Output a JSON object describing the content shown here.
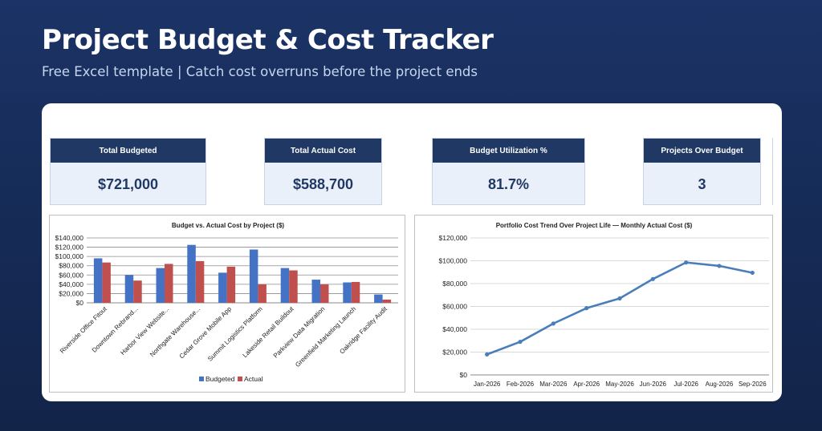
{
  "header": {
    "title": "Project Budget & Cost Tracker",
    "subtitle": "Free Excel template  |  Catch cost overruns before the project ends"
  },
  "kpis": [
    {
      "label": "Total Budgeted",
      "value": "$721,000"
    },
    {
      "label": "Total Actual Cost",
      "value": "$588,700"
    },
    {
      "label": "Budget Utilization %",
      "value": "81.7%"
    },
    {
      "label": "Projects Over Budget",
      "value": "3"
    }
  ],
  "colors": {
    "header_bg": "#1f3864",
    "kpi_bg": "#eaf0f9",
    "budgeted": "#4472c4",
    "actual": "#c0504d",
    "trend_line": "#4a7ebb"
  },
  "chart_data": [
    {
      "type": "bar",
      "title": "Budget vs. Actual Cost by Project ($)",
      "categories": [
        "Riverside Office Fitout",
        "Downtown Rebrand...",
        "Harbor View Website...",
        "Northgate Warehouse...",
        "Cedar Grove Mobile App",
        "Summit Logistics Platform",
        "Lakeside Retail Buildout",
        "Parkview Data Migration",
        "Greenfield Marketing Launch",
        "Oakridge Facility Audit"
      ],
      "series": [
        {
          "name": "Budgeted",
          "values": [
            96000,
            60000,
            75000,
            125000,
            65000,
            115000,
            75000,
            50000,
            44000,
            18000
          ]
        },
        {
          "name": "Actual",
          "values": [
            87000,
            48000,
            84000,
            90000,
            78000,
            40000,
            70000,
            40000,
            45000,
            7000
          ]
        }
      ],
      "yticks": [
        "$0",
        "$20,000",
        "$40,000",
        "$60,000",
        "$80,000",
        "$100,000",
        "$120,000",
        "$140,000"
      ],
      "ylim": [
        0,
        140000
      ],
      "grid": true,
      "legend": "bottom"
    },
    {
      "type": "line",
      "title": "Portfolio Cost Trend Over Project Life — Monthly Actual Cost ($)",
      "x": [
        "Jan-2026",
        "Feb-2026",
        "Mar-2026",
        "Apr-2026",
        "May-2026",
        "Jun-2026",
        "Jul-2026",
        "Aug-2026",
        "Sep-2026"
      ],
      "y": [
        18000,
        29000,
        45000,
        58500,
        67000,
        84000,
        98500,
        95500,
        89500
      ],
      "yticks": [
        "$0",
        "$20,000",
        "$40,000",
        "$60,000",
        "$80,000",
        "$100,000",
        "$120,000"
      ],
      "ylim": [
        0,
        120000
      ],
      "grid": true
    }
  ]
}
